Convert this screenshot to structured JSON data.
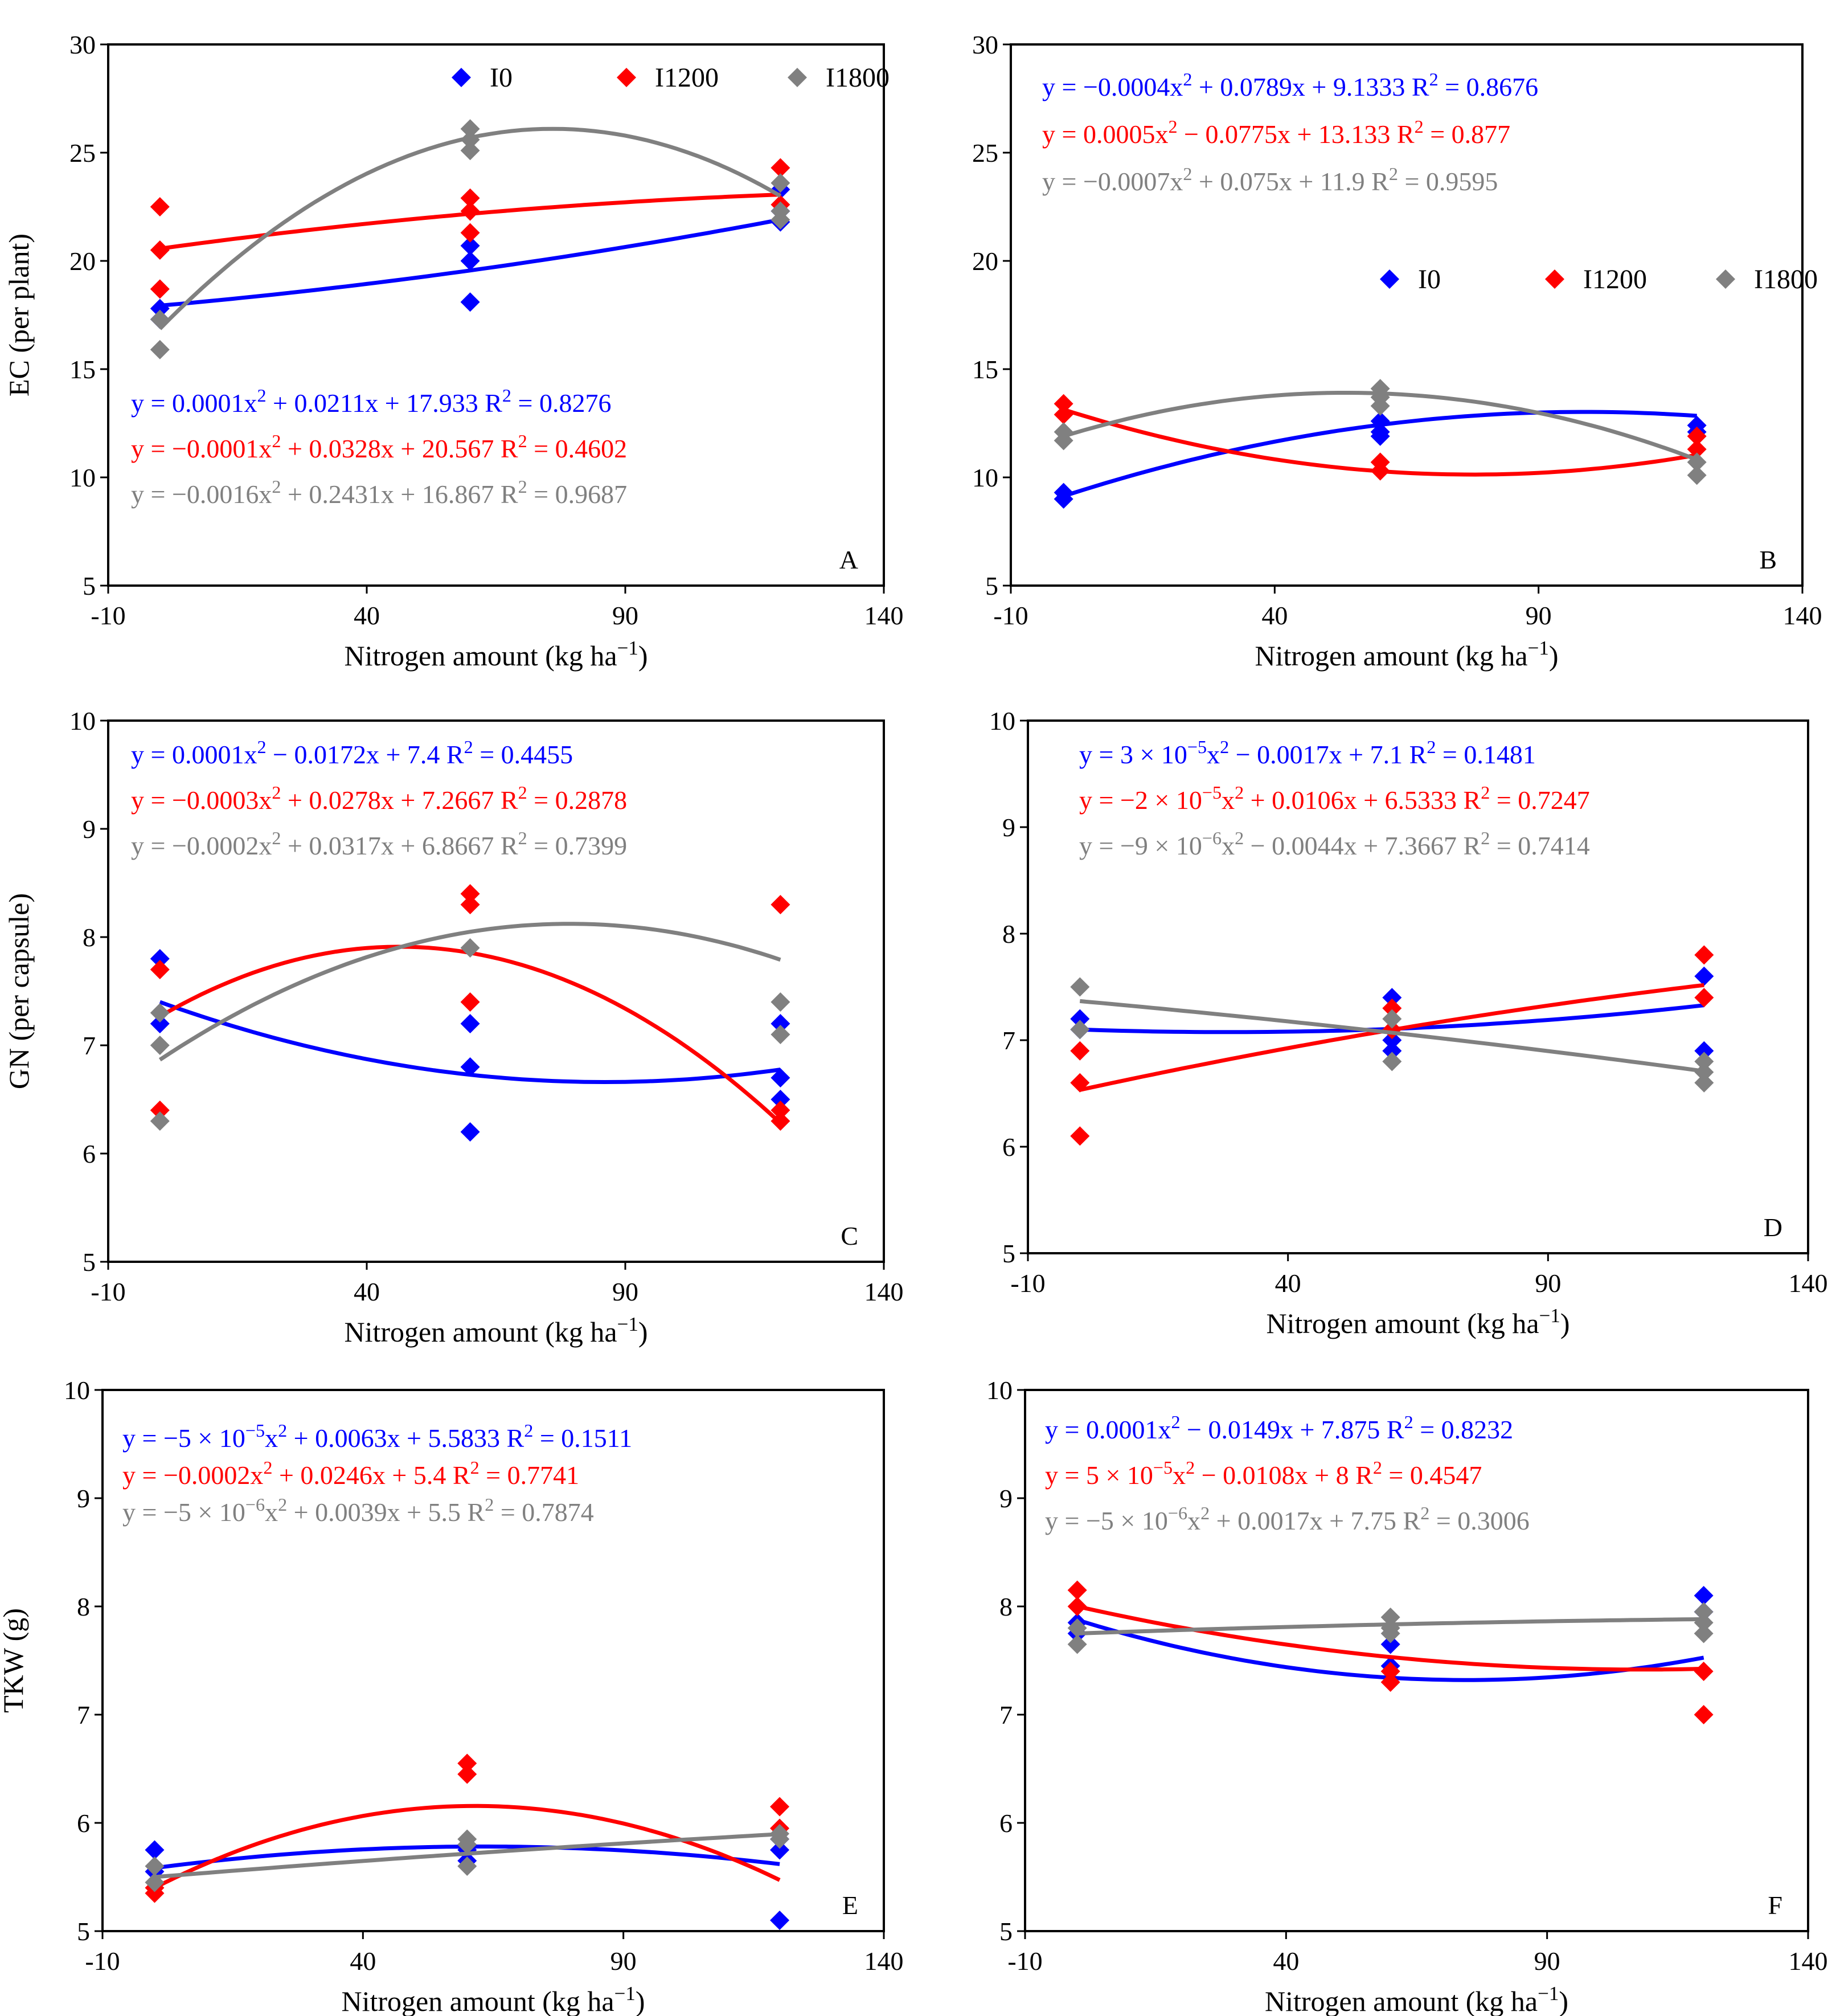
{
  "colors": {
    "I0": "#0000ff",
    "I1200": "#ff0000",
    "I1800": "#808080",
    "axis": "#000000"
  },
  "legend": [
    "I0",
    "I1200",
    "I1800"
  ],
  "chart_data": [
    {
      "panel": "A",
      "type": "scatter",
      "xlabel": "Nitrogen amount (kg ha⁻¹)",
      "ylabel": "EC (per plant)",
      "xlim": [
        -10,
        140
      ],
      "ylim": [
        5,
        30
      ],
      "xticks": [
        -10,
        40,
        90,
        140
      ],
      "yticks": [
        5,
        10,
        15,
        20,
        25,
        30
      ],
      "show_legend": true,
      "legend_position": "top-right",
      "equations": [
        {
          "series": "I0",
          "text": "y = 0.0001x² + 0.0211x + 17.933   R² = 0.8276"
        },
        {
          "series": "I1200",
          "text": "y = −0.0001x² + 0.0328x + 20.567   R² = 0.4602"
        },
        {
          "series": "I1800",
          "text": "y = −0.0016x² + 0.2431x + 16.867   R² = 0.9687"
        }
      ],
      "equations_position": "bottom-left",
      "series": [
        {
          "name": "I0",
          "points": [
            [
              0,
              17.8
            ],
            [
              0,
              17.3
            ],
            [
              60,
              20.7
            ],
            [
              60,
              20.0
            ],
            [
              60,
              18.1
            ],
            [
              120,
              22.3
            ],
            [
              120,
              21.8
            ],
            [
              120,
              23.3
            ]
          ],
          "fit": [
            0.0001,
            0.0211,
            17.933
          ]
        },
        {
          "name": "I1200",
          "points": [
            [
              0,
              22.5
            ],
            [
              0,
              20.5
            ],
            [
              0,
              18.7
            ],
            [
              60,
              22.9
            ],
            [
              60,
              22.3
            ],
            [
              60,
              21.3
            ],
            [
              120,
              24.3
            ],
            [
              120,
              22.6
            ]
          ],
          "fit": [
            -0.0001,
            0.0328,
            20.567
          ]
        },
        {
          "name": "I1800",
          "points": [
            [
              0,
              17.3
            ],
            [
              0,
              15.9
            ],
            [
              60,
              26.1
            ],
            [
              60,
              25.6
            ],
            [
              60,
              25.1
            ],
            [
              120,
              23.6
            ],
            [
              120,
              22.3
            ],
            [
              120,
              21.9
            ]
          ],
          "fit": [
            -0.0016,
            0.2431,
            16.867
          ]
        }
      ]
    },
    {
      "panel": "B",
      "type": "scatter",
      "xlabel": "Nitrogen amount (kg ha⁻¹)",
      "ylabel": "",
      "xlim": [
        -10,
        140
      ],
      "ylim": [
        5,
        30
      ],
      "xticks": [
        -10,
        40,
        90,
        140
      ],
      "yticks": [
        5,
        10,
        15,
        20,
        25,
        30
      ],
      "show_legend": true,
      "legend_position": "middle-right",
      "equations": [
        {
          "series": "I0",
          "text": "y = −0.0004x² + 0.0789x + 9.1333   R² = 0.8676"
        },
        {
          "series": "I1200",
          "text": "y = 0.0005x² − 0.0775x + 13.133   R² = 0.877"
        },
        {
          "series": "I1800",
          "text": "y = −0.0007x² + 0.075x + 11.9   R² = 0.9595"
        }
      ],
      "equations_position": "top-left",
      "series": [
        {
          "name": "I0",
          "points": [
            [
              0,
              9.3
            ],
            [
              0,
              9.0
            ],
            [
              60,
              12.6
            ],
            [
              60,
              12.1
            ],
            [
              60,
              11.9
            ],
            [
              120,
              12.4
            ],
            [
              120,
              12.1
            ]
          ],
          "fit": [
            -0.0004,
            0.0789,
            9.1333
          ]
        },
        {
          "name": "I1200",
          "points": [
            [
              0,
              13.4
            ],
            [
              0,
              12.9
            ],
            [
              60,
              10.7
            ],
            [
              60,
              10.3
            ],
            [
              120,
              11.9
            ],
            [
              120,
              11.3
            ]
          ],
          "fit": [
            0.0005,
            -0.0775,
            13.133
          ]
        },
        {
          "name": "I1800",
          "points": [
            [
              0,
              12.1
            ],
            [
              0,
              11.7
            ],
            [
              60,
              14.1
            ],
            [
              60,
              13.7
            ],
            [
              60,
              13.3
            ],
            [
              120,
              10.7
            ],
            [
              120,
              10.1
            ]
          ],
          "fit": [
            -0.0007,
            0.075,
            11.9
          ]
        }
      ]
    },
    {
      "panel": "C",
      "type": "scatter",
      "xlabel": "Nitrogen amount (kg ha⁻¹)",
      "ylabel": "GN (per capsule)",
      "xlim": [
        -10,
        140
      ],
      "ylim": [
        5,
        10
      ],
      "xticks": [
        -10,
        40,
        90,
        140
      ],
      "yticks": [
        5,
        6,
        7,
        8,
        9,
        10
      ],
      "show_legend": false,
      "equations": [
        {
          "series": "I0",
          "text": "y = 0.0001x² − 0.0172x + 7.4   R² = 0.4455"
        },
        {
          "series": "I1200",
          "text": "y = −0.0003x² + 0.0278x + 7.2667   R² = 0.2878"
        },
        {
          "series": "I1800",
          "text": "y = −0.0002x² + 0.0317x + 6.8667   R² = 0.7399"
        }
      ],
      "equations_position": "top-left",
      "series": [
        {
          "name": "I0",
          "points": [
            [
              0,
              7.8
            ],
            [
              0,
              7.2
            ],
            [
              60,
              7.2
            ],
            [
              60,
              6.8
            ],
            [
              60,
              6.2
            ],
            [
              120,
              7.2
            ],
            [
              120,
              6.7
            ],
            [
              120,
              6.5
            ]
          ],
          "fit": [
            0.0001,
            -0.0172,
            7.4
          ]
        },
        {
          "name": "I1200",
          "points": [
            [
              0,
              7.7
            ],
            [
              0,
              6.4
            ],
            [
              60,
              8.4
            ],
            [
              60,
              8.3
            ],
            [
              60,
              7.4
            ],
            [
              120,
              8.3
            ],
            [
              120,
              6.4
            ],
            [
              120,
              6.3
            ]
          ],
          "fit": [
            -0.0003,
            0.0278,
            7.2667
          ]
        },
        {
          "name": "I1800",
          "points": [
            [
              0,
              7.3
            ],
            [
              0,
              7.0
            ],
            [
              0,
              6.3
            ],
            [
              60,
              7.9
            ],
            [
              120,
              7.4
            ],
            [
              120,
              7.1
            ]
          ],
          "fit": [
            -0.0002,
            0.0317,
            6.8667
          ]
        }
      ]
    },
    {
      "panel": "D",
      "type": "scatter",
      "xlabel": "Nitrogen amount (kg ha⁻¹)",
      "ylabel": "",
      "xlim": [
        -10,
        140
      ],
      "ylim": [
        5,
        10
      ],
      "xticks": [
        -10,
        40,
        90,
        140
      ],
      "yticks": [
        5,
        6,
        7,
        8,
        9,
        10
      ],
      "show_legend": false,
      "equations": [
        {
          "series": "I0",
          "text": "y = 3 × 10⁻⁵x² − 0.0017x + 7.1   R² = 0.1481"
        },
        {
          "series": "I1200",
          "text": "y = −2 × 10⁻⁵x² + 0.0106x + 6.5333   R² = 0.7247"
        },
        {
          "series": "I1800",
          "text": "y = −9 × 10⁻⁶x² − 0.0044x + 7.3667   R² = 0.7414"
        }
      ],
      "equations_position": "top-left",
      "series": [
        {
          "name": "I0",
          "points": [
            [
              0,
              7.2
            ],
            [
              0,
              7.1
            ],
            [
              60,
              7.4
            ],
            [
              60,
              7.0
            ],
            [
              60,
              6.9
            ],
            [
              120,
              7.6
            ],
            [
              120,
              6.9
            ]
          ],
          "fit": [
            3e-05,
            -0.0017,
            7.1
          ]
        },
        {
          "name": "I1200",
          "points": [
            [
              0,
              6.9
            ],
            [
              0,
              6.6
            ],
            [
              0,
              6.1
            ],
            [
              60,
              7.3
            ],
            [
              60,
              7.1
            ],
            [
              120,
              7.8
            ],
            [
              120,
              7.4
            ]
          ],
          "fit": [
            -2e-05,
            0.0106,
            6.5333
          ]
        },
        {
          "name": "I1800",
          "points": [
            [
              0,
              7.5
            ],
            [
              0,
              7.1
            ],
            [
              60,
              7.2
            ],
            [
              60,
              6.8
            ],
            [
              120,
              6.8
            ],
            [
              120,
              6.7
            ],
            [
              120,
              6.6
            ]
          ],
          "fit": [
            -9e-06,
            -0.0044,
            7.3667
          ]
        }
      ]
    },
    {
      "panel": "E",
      "type": "scatter",
      "xlabel": "Nitrogen amount (kg ha⁻¹)",
      "ylabel": "TKW (g)",
      "xlim": [
        -10,
        140
      ],
      "ylim": [
        5,
        10
      ],
      "xticks": [
        -10,
        40,
        90,
        140
      ],
      "yticks": [
        5,
        6,
        7,
        8,
        9,
        10
      ],
      "show_legend": false,
      "equations": [
        {
          "series": "I0",
          "text": "y = −5 × 10⁻⁵x² + 0.0063x + 5.5833   R² = 0.1511"
        },
        {
          "series": "I1200",
          "text": "y = −0.0002x² + 0.0246x + 5.4   R² = 0.7741"
        },
        {
          "series": "I1800",
          "text": "y = −5 × 10⁻⁶x² + 0.0039x + 5.5   R² = 0.7874"
        }
      ],
      "equations_position": "top-left",
      "series": [
        {
          "name": "I0",
          "points": [
            [
              0,
              5.75
            ],
            [
              0,
              5.55
            ],
            [
              60,
              5.75
            ],
            [
              60,
              5.65
            ],
            [
              120,
              5.85
            ],
            [
              120,
              5.75
            ],
            [
              120,
              5.1
            ]
          ],
          "fit": [
            -5e-05,
            0.0063,
            5.5833
          ]
        },
        {
          "name": "I1200",
          "points": [
            [
              0,
              5.4
            ],
            [
              0,
              5.35
            ],
            [
              60,
              6.55
            ],
            [
              60,
              6.45
            ],
            [
              120,
              6.15
            ],
            [
              120,
              5.95
            ]
          ],
          "fit": [
            -0.0002,
            0.0246,
            5.4
          ]
        },
        {
          "name": "I1800",
          "points": [
            [
              0,
              5.6
            ],
            [
              0,
              5.45
            ],
            [
              60,
              5.85
            ],
            [
              60,
              5.8
            ],
            [
              60,
              5.6
            ],
            [
              120,
              5.9
            ],
            [
              120,
              5.85
            ]
          ],
          "fit": [
            -5e-06,
            0.0039,
            5.5
          ]
        }
      ]
    },
    {
      "panel": "F",
      "type": "scatter",
      "xlabel": "Nitrogen amount (kg ha⁻¹)",
      "ylabel": "",
      "xlim": [
        -10,
        140
      ],
      "ylim": [
        5,
        10
      ],
      "xticks": [
        -10,
        40,
        90,
        140
      ],
      "yticks": [
        5,
        6,
        7,
        8,
        9,
        10
      ],
      "show_legend": false,
      "equations": [
        {
          "series": "I0",
          "text": "y = 0.0001x² − 0.0149x + 7.875   R² = 0.8232"
        },
        {
          "series": "I1200",
          "text": "y = 5 × 10⁻⁵x² − 0.0108x + 8   R² = 0.4547"
        },
        {
          "series": "I1800",
          "text": "y = −5 × 10⁻⁶x² + 0.0017x + 7.75   R² = 0.3006"
        }
      ],
      "equations_position": "top-left",
      "series": [
        {
          "name": "I0",
          "points": [
            [
              0,
              7.85
            ],
            [
              0,
              7.75
            ],
            [
              60,
              7.65
            ],
            [
              60,
              7.45
            ],
            [
              120,
              8.1
            ],
            [
              120,
              7.95
            ]
          ],
          "fit": [
            0.0001,
            -0.0149,
            7.875
          ]
        },
        {
          "name": "I1200",
          "points": [
            [
              0,
              8.15
            ],
            [
              0,
              8.0
            ],
            [
              60,
              7.4
            ],
            [
              60,
              7.3
            ],
            [
              120,
              7.4
            ],
            [
              120,
              7.0
            ]
          ],
          "fit": [
            5e-05,
            -0.0108,
            8
          ]
        },
        {
          "name": "I1800",
          "points": [
            [
              0,
              7.8
            ],
            [
              0,
              7.65
            ],
            [
              60,
              7.9
            ],
            [
              60,
              7.8
            ],
            [
              60,
              7.75
            ],
            [
              120,
              7.95
            ],
            [
              120,
              7.85
            ],
            [
              120,
              7.75
            ]
          ],
          "fit": [
            -5e-06,
            0.0017,
            7.75
          ]
        }
      ]
    }
  ]
}
